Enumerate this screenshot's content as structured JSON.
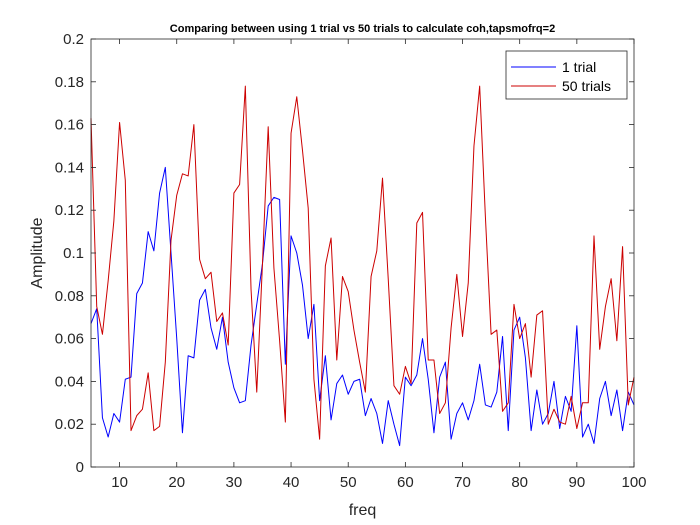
{
  "chart_data": {
    "type": "line",
    "title": "Comparing between using 1 trial vs 50 trials to calculate coh,tapsmofrq=2",
    "xlabel": "freq",
    "ylabel": "Amplitude",
    "xlim": [
      5,
      100
    ],
    "ylim": [
      0,
      0.2
    ],
    "xticks": [
      "10",
      "20",
      "30",
      "40",
      "50",
      "60",
      "70",
      "80",
      "90",
      "100"
    ],
    "yticks": [
      "0",
      "0.02",
      "0.04",
      "0.06",
      "0.08",
      "0.1",
      "0.12",
      "0.14",
      "0.16",
      "0.18",
      "0.2"
    ],
    "legend_position": "top-right",
    "series": [
      {
        "name": "1 trial",
        "color": "#0000FF",
        "x": [
          5,
          6,
          7,
          8,
          9,
          10,
          11,
          12,
          13,
          14,
          15,
          16,
          17,
          18,
          19,
          20,
          21,
          22,
          23,
          24,
          25,
          26,
          27,
          28,
          29,
          30,
          31,
          32,
          33,
          34,
          35,
          36,
          37,
          38,
          39,
          40,
          41,
          42,
          43,
          44,
          45,
          46,
          47,
          48,
          49,
          50,
          51,
          52,
          53,
          54,
          55,
          56,
          57,
          58,
          59,
          60,
          61,
          62,
          63,
          64,
          65,
          66,
          67,
          68,
          69,
          70,
          71,
          72,
          73,
          74,
          75,
          76,
          77,
          78,
          79,
          80,
          81,
          82,
          83,
          84,
          85,
          86,
          87,
          88,
          89,
          90,
          91,
          92,
          93,
          94,
          95,
          96,
          97,
          98,
          99,
          100
        ],
        "values": [
          0.067,
          0.074,
          0.023,
          0.014,
          0.025,
          0.021,
          0.041,
          0.042,
          0.081,
          0.086,
          0.11,
          0.101,
          0.128,
          0.14,
          0.1,
          0.06,
          0.016,
          0.052,
          0.051,
          0.078,
          0.083,
          0.065,
          0.055,
          0.07,
          0.049,
          0.037,
          0.03,
          0.031,
          0.057,
          0.076,
          0.095,
          0.122,
          0.126,
          0.125,
          0.048,
          0.108,
          0.1,
          0.085,
          0.06,
          0.076,
          0.031,
          0.052,
          0.022,
          0.039,
          0.043,
          0.034,
          0.04,
          0.041,
          0.024,
          0.032,
          0.025,
          0.011,
          0.031,
          0.02,
          0.01,
          0.042,
          0.038,
          0.043,
          0.06,
          0.041,
          0.016,
          0.042,
          0.049,
          0.013,
          0.025,
          0.03,
          0.022,
          0.031,
          0.048,
          0.029,
          0.028,
          0.035,
          0.061,
          0.017,
          0.064,
          0.07,
          0.051,
          0.017,
          0.036,
          0.02,
          0.025,
          0.04,
          0.018,
          0.033,
          0.026,
          0.066,
          0.014,
          0.02,
          0.011,
          0.032,
          0.04,
          0.024,
          0.036,
          0.017,
          0.035,
          0.029
        ]
      },
      {
        "name": "50 trials",
        "color": "#CC0000",
        "x": [
          5,
          6,
          7,
          8,
          9,
          10,
          11,
          12,
          13,
          14,
          15,
          16,
          17,
          18,
          19,
          20,
          21,
          22,
          23,
          24,
          25,
          26,
          27,
          28,
          29,
          30,
          31,
          32,
          33,
          34,
          35,
          36,
          37,
          38,
          39,
          40,
          41,
          42,
          43,
          44,
          45,
          46,
          47,
          48,
          49,
          50,
          51,
          52,
          53,
          54,
          55,
          56,
          57,
          58,
          59,
          60,
          61,
          62,
          63,
          64,
          65,
          66,
          67,
          68,
          69,
          70,
          71,
          72,
          73,
          74,
          75,
          76,
          77,
          78,
          79,
          80,
          81,
          82,
          83,
          84,
          85,
          86,
          87,
          88,
          89,
          90,
          91,
          92,
          93,
          94,
          95,
          96,
          97,
          98,
          99,
          100
        ],
        "values": [
          0.163,
          0.075,
          0.062,
          0.087,
          0.115,
          0.161,
          0.134,
          0.017,
          0.024,
          0.027,
          0.044,
          0.017,
          0.019,
          0.049,
          0.106,
          0.127,
          0.137,
          0.136,
          0.16,
          0.097,
          0.088,
          0.091,
          0.068,
          0.072,
          0.057,
          0.128,
          0.132,
          0.178,
          0.083,
          0.035,
          0.095,
          0.159,
          0.093,
          0.059,
          0.021,
          0.156,
          0.173,
          0.148,
          0.121,
          0.041,
          0.013,
          0.094,
          0.107,
          0.05,
          0.089,
          0.082,
          0.064,
          0.049,
          0.035,
          0.089,
          0.101,
          0.135,
          0.088,
          0.038,
          0.034,
          0.047,
          0.039,
          0.114,
          0.119,
          0.05,
          0.05,
          0.025,
          0.03,
          0.065,
          0.09,
          0.061,
          0.086,
          0.15,
          0.178,
          0.117,
          0.062,
          0.064,
          0.026,
          0.03,
          0.076,
          0.06,
          0.067,
          0.042,
          0.071,
          0.073,
          0.02,
          0.027,
          0.021,
          0.02,
          0.033,
          0.018,
          0.03,
          0.03,
          0.108,
          0.055,
          0.075,
          0.088,
          0.059,
          0.103,
          0.029,
          0.042
        ]
      }
    ]
  }
}
